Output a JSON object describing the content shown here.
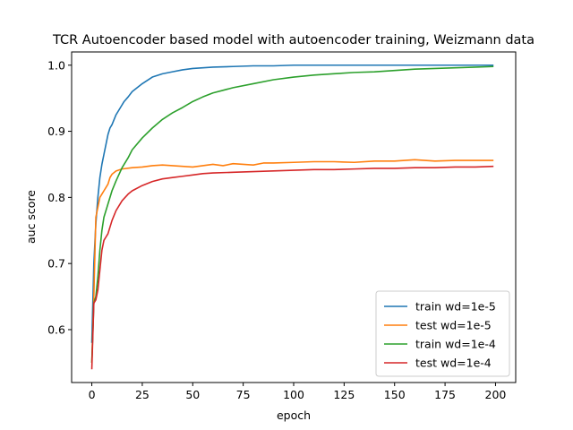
{
  "chart_data": {
    "type": "line",
    "title": "TCR Autoencoder based model with autoencoder training, Weizmann data",
    "xlabel": "epoch",
    "ylabel": "auc score",
    "xlim": [
      -10,
      210
    ],
    "ylim": [
      0.52,
      1.02
    ],
    "xticks": [
      0,
      25,
      50,
      75,
      100,
      125,
      150,
      175,
      200
    ],
    "yticks": [
      0.6,
      0.7,
      0.8,
      0.9,
      1.0
    ],
    "xtick_labels": [
      "0",
      "25",
      "50",
      "75",
      "100",
      "125",
      "150",
      "175",
      "200"
    ],
    "ytick_labels": [
      "0.6",
      "0.7",
      "0.8",
      "0.9",
      "1.0"
    ],
    "grid": false,
    "legend_position": "lower-right",
    "series": [
      {
        "name": "train wd=1e-5",
        "color": "#1f77b4",
        "x": [
          0,
          1,
          2,
          3,
          4,
          5,
          6,
          7,
          8,
          9,
          10,
          12,
          14,
          16,
          18,
          20,
          25,
          30,
          35,
          40,
          45,
          50,
          60,
          70,
          80,
          90,
          100,
          125,
          150,
          175,
          199
        ],
        "y": [
          0.58,
          0.7,
          0.76,
          0.8,
          0.83,
          0.85,
          0.865,
          0.88,
          0.895,
          0.905,
          0.91,
          0.925,
          0.935,
          0.945,
          0.952,
          0.96,
          0.972,
          0.982,
          0.987,
          0.99,
          0.993,
          0.995,
          0.997,
          0.998,
          0.999,
          0.999,
          1.0,
          1.0,
          1.0,
          1.0,
          1.0
        ]
      },
      {
        "name": "test wd=1e-5",
        "color": "#ff7f0e",
        "x": [
          0,
          1,
          2,
          3,
          4,
          5,
          6,
          7,
          8,
          9,
          10,
          12,
          15,
          20,
          25,
          30,
          35,
          40,
          45,
          50,
          55,
          60,
          65,
          70,
          75,
          80,
          85,
          90,
          100,
          110,
          120,
          130,
          140,
          150,
          160,
          170,
          180,
          190,
          199
        ],
        "y": [
          0.55,
          0.65,
          0.77,
          0.785,
          0.8,
          0.805,
          0.81,
          0.815,
          0.82,
          0.83,
          0.835,
          0.84,
          0.843,
          0.845,
          0.846,
          0.848,
          0.849,
          0.848,
          0.847,
          0.846,
          0.848,
          0.85,
          0.848,
          0.851,
          0.85,
          0.849,
          0.852,
          0.852,
          0.853,
          0.854,
          0.854,
          0.853,
          0.855,
          0.855,
          0.857,
          0.855,
          0.856,
          0.856,
          0.856
        ]
      },
      {
        "name": "train wd=1e-4",
        "color": "#2ca02c",
        "x": [
          0,
          1,
          2,
          3,
          4,
          5,
          6,
          7,
          8,
          10,
          12,
          15,
          18,
          20,
          25,
          30,
          35,
          40,
          45,
          50,
          55,
          60,
          65,
          70,
          80,
          90,
          100,
          110,
          120,
          130,
          140,
          150,
          160,
          170,
          180,
          190,
          199
        ],
        "y": [
          0.55,
          0.64,
          0.65,
          0.68,
          0.72,
          0.75,
          0.77,
          0.78,
          0.79,
          0.81,
          0.825,
          0.845,
          0.86,
          0.872,
          0.89,
          0.905,
          0.918,
          0.928,
          0.936,
          0.945,
          0.952,
          0.958,
          0.962,
          0.966,
          0.972,
          0.978,
          0.982,
          0.985,
          0.987,
          0.989,
          0.99,
          0.992,
          0.994,
          0.995,
          0.996,
          0.997,
          0.998
        ]
      },
      {
        "name": "test wd=1e-4",
        "color": "#d62728",
        "x": [
          0,
          1,
          2,
          3,
          4,
          5,
          6,
          7,
          8,
          9,
          10,
          12,
          15,
          18,
          20,
          25,
          30,
          35,
          40,
          45,
          50,
          55,
          60,
          70,
          80,
          90,
          100,
          110,
          120,
          130,
          140,
          150,
          160,
          170,
          180,
          190,
          199
        ],
        "y": [
          0.54,
          0.64,
          0.645,
          0.66,
          0.69,
          0.72,
          0.735,
          0.74,
          0.745,
          0.755,
          0.765,
          0.78,
          0.795,
          0.805,
          0.81,
          0.818,
          0.824,
          0.828,
          0.83,
          0.832,
          0.834,
          0.836,
          0.837,
          0.838,
          0.839,
          0.84,
          0.841,
          0.842,
          0.842,
          0.843,
          0.844,
          0.844,
          0.845,
          0.845,
          0.846,
          0.846,
          0.847
        ]
      }
    ]
  }
}
